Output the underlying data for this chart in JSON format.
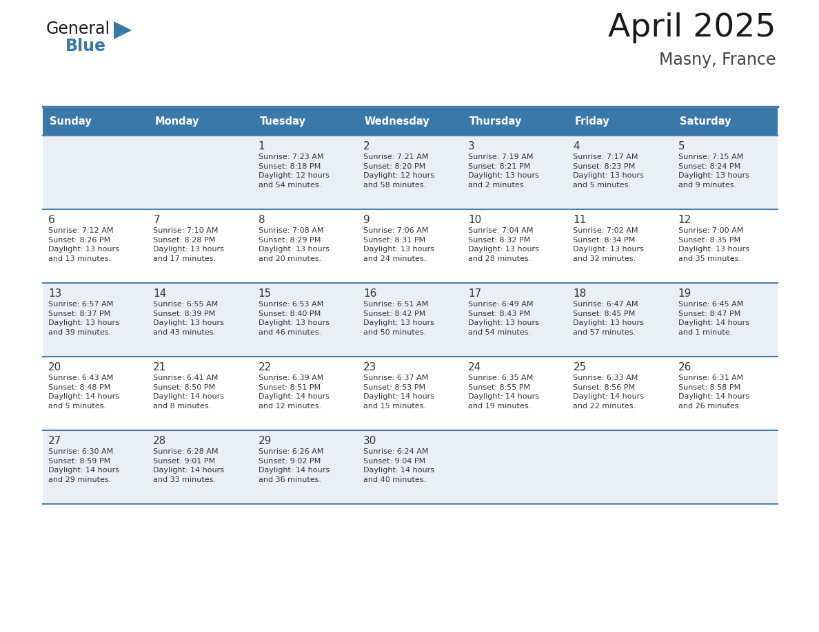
{
  "title": "April 2025",
  "subtitle": "Masny, France",
  "header_bg": "#3A78AA",
  "header_text_color": "#FFFFFF",
  "row_bg_odd": "#EAEFF4",
  "row_bg_even": "#FFFFFF",
  "divider_color": "#4A7FAA",
  "text_color": "#333333",
  "days_of_week": [
    "Sunday",
    "Monday",
    "Tuesday",
    "Wednesday",
    "Thursday",
    "Friday",
    "Saturday"
  ],
  "weeks": [
    [
      {
        "day": "",
        "info": ""
      },
      {
        "day": "",
        "info": ""
      },
      {
        "day": "1",
        "info": "Sunrise: 7:23 AM\nSunset: 8:18 PM\nDaylight: 12 hours\nand 54 minutes."
      },
      {
        "day": "2",
        "info": "Sunrise: 7:21 AM\nSunset: 8:20 PM\nDaylight: 12 hours\nand 58 minutes."
      },
      {
        "day": "3",
        "info": "Sunrise: 7:19 AM\nSunset: 8:21 PM\nDaylight: 13 hours\nand 2 minutes."
      },
      {
        "day": "4",
        "info": "Sunrise: 7:17 AM\nSunset: 8:23 PM\nDaylight: 13 hours\nand 5 minutes."
      },
      {
        "day": "5",
        "info": "Sunrise: 7:15 AM\nSunset: 8:24 PM\nDaylight: 13 hours\nand 9 minutes."
      }
    ],
    [
      {
        "day": "6",
        "info": "Sunrise: 7:12 AM\nSunset: 8:26 PM\nDaylight: 13 hours\nand 13 minutes."
      },
      {
        "day": "7",
        "info": "Sunrise: 7:10 AM\nSunset: 8:28 PM\nDaylight: 13 hours\nand 17 minutes."
      },
      {
        "day": "8",
        "info": "Sunrise: 7:08 AM\nSunset: 8:29 PM\nDaylight: 13 hours\nand 20 minutes."
      },
      {
        "day": "9",
        "info": "Sunrise: 7:06 AM\nSunset: 8:31 PM\nDaylight: 13 hours\nand 24 minutes."
      },
      {
        "day": "10",
        "info": "Sunrise: 7:04 AM\nSunset: 8:32 PM\nDaylight: 13 hours\nand 28 minutes."
      },
      {
        "day": "11",
        "info": "Sunrise: 7:02 AM\nSunset: 8:34 PM\nDaylight: 13 hours\nand 32 minutes."
      },
      {
        "day": "12",
        "info": "Sunrise: 7:00 AM\nSunset: 8:35 PM\nDaylight: 13 hours\nand 35 minutes."
      }
    ],
    [
      {
        "day": "13",
        "info": "Sunrise: 6:57 AM\nSunset: 8:37 PM\nDaylight: 13 hours\nand 39 minutes."
      },
      {
        "day": "14",
        "info": "Sunrise: 6:55 AM\nSunset: 8:39 PM\nDaylight: 13 hours\nand 43 minutes."
      },
      {
        "day": "15",
        "info": "Sunrise: 6:53 AM\nSunset: 8:40 PM\nDaylight: 13 hours\nand 46 minutes."
      },
      {
        "day": "16",
        "info": "Sunrise: 6:51 AM\nSunset: 8:42 PM\nDaylight: 13 hours\nand 50 minutes."
      },
      {
        "day": "17",
        "info": "Sunrise: 6:49 AM\nSunset: 8:43 PM\nDaylight: 13 hours\nand 54 minutes."
      },
      {
        "day": "18",
        "info": "Sunrise: 6:47 AM\nSunset: 8:45 PM\nDaylight: 13 hours\nand 57 minutes."
      },
      {
        "day": "19",
        "info": "Sunrise: 6:45 AM\nSunset: 8:47 PM\nDaylight: 14 hours\nand 1 minute."
      }
    ],
    [
      {
        "day": "20",
        "info": "Sunrise: 6:43 AM\nSunset: 8:48 PM\nDaylight: 14 hours\nand 5 minutes."
      },
      {
        "day": "21",
        "info": "Sunrise: 6:41 AM\nSunset: 8:50 PM\nDaylight: 14 hours\nand 8 minutes."
      },
      {
        "day": "22",
        "info": "Sunrise: 6:39 AM\nSunset: 8:51 PM\nDaylight: 14 hours\nand 12 minutes."
      },
      {
        "day": "23",
        "info": "Sunrise: 6:37 AM\nSunset: 8:53 PM\nDaylight: 14 hours\nand 15 minutes."
      },
      {
        "day": "24",
        "info": "Sunrise: 6:35 AM\nSunset: 8:55 PM\nDaylight: 14 hours\nand 19 minutes."
      },
      {
        "day": "25",
        "info": "Sunrise: 6:33 AM\nSunset: 8:56 PM\nDaylight: 14 hours\nand 22 minutes."
      },
      {
        "day": "26",
        "info": "Sunrise: 6:31 AM\nSunset: 8:58 PM\nDaylight: 14 hours\nand 26 minutes."
      }
    ],
    [
      {
        "day": "27",
        "info": "Sunrise: 6:30 AM\nSunset: 8:59 PM\nDaylight: 14 hours\nand 29 minutes."
      },
      {
        "day": "28",
        "info": "Sunrise: 6:28 AM\nSunset: 9:01 PM\nDaylight: 14 hours\nand 33 minutes."
      },
      {
        "day": "29",
        "info": "Sunrise: 6:26 AM\nSunset: 9:02 PM\nDaylight: 14 hours\nand 36 minutes."
      },
      {
        "day": "30",
        "info": "Sunrise: 6:24 AM\nSunset: 9:04 PM\nDaylight: 14 hours\nand 40 minutes."
      },
      {
        "day": "",
        "info": ""
      },
      {
        "day": "",
        "info": ""
      },
      {
        "day": "",
        "info": ""
      }
    ]
  ],
  "logo_general_color": "#1a1a1a",
  "logo_blue_color": "#3A78AA",
  "logo_triangle_color": "#3A78AA",
  "title_color": "#1a1a1a",
  "subtitle_color": "#444444"
}
